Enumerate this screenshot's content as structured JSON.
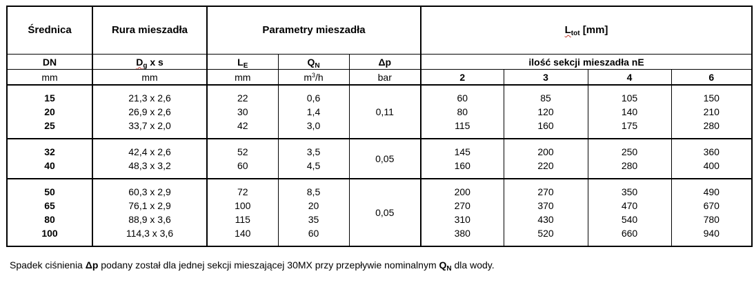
{
  "header": {
    "col_srednica": "Średnica",
    "col_rura": "Rura mieszadła",
    "col_parametry": "Parametry mieszadła",
    "col_ltot_main": "L",
    "col_ltot_sub": "tot",
    "col_ltot_unit": " [mm]",
    "dn": "DN",
    "dg_main": "D",
    "dg_sub": "g",
    "dg_rest": " x s",
    "le_main": "L",
    "le_sub": "E",
    "qn_main": "Q",
    "qn_sub": "N",
    "dp": "Δp",
    "sekcje": "ilość sekcji mieszadła nE",
    "unit_dn": "mm",
    "unit_dg": "mm",
    "unit_le": "mm",
    "unit_qn_main": "m",
    "unit_qn_sup": "3",
    "unit_qn_rest": "/h",
    "unit_dp": "bar",
    "n2": "2",
    "n3": "3",
    "n4": "4",
    "n6": "6"
  },
  "groups": [
    {
      "dp": "0,11",
      "rows": [
        {
          "dn": "15",
          "dgs": "21,3 x 2,6",
          "le": "22",
          "qn": "0,6",
          "l2": "60",
          "l3": "85",
          "l4": "105",
          "l6": "150"
        },
        {
          "dn": "20",
          "dgs": "26,9 x 2,6",
          "le": "30",
          "qn": "1,4",
          "l2": "80",
          "l3": "120",
          "l4": "140",
          "l6": "210"
        },
        {
          "dn": "25",
          "dgs": "33,7 x 2,0",
          "le": "42",
          "qn": "3,0",
          "l2": "115",
          "l3": "160",
          "l4": "175",
          "l6": "280"
        }
      ]
    },
    {
      "dp": "0,05",
      "rows": [
        {
          "dn": "32",
          "dgs": "42,4 x 2,6",
          "le": "52",
          "qn": "3,5",
          "l2": "145",
          "l3": "200",
          "l4": "250",
          "l6": "360"
        },
        {
          "dn": "40",
          "dgs": "48,3 x 3,2",
          "le": "60",
          "qn": "4,5",
          "l2": "160",
          "l3": "220",
          "l4": "280",
          "l6": "400"
        }
      ]
    },
    {
      "dp": "0,05",
      "rows": [
        {
          "dn": "50",
          "dgs": "60,3 x 2,9",
          "le": "72",
          "qn": "8,5",
          "l2": "200",
          "l3": "270",
          "l4": "350",
          "l6": "490"
        },
        {
          "dn": "65",
          "dgs": "76,1 x 2,9",
          "le": "100",
          "qn": "20",
          "l2": "270",
          "l3": "370",
          "l4": "470",
          "l6": "670"
        },
        {
          "dn": "80",
          "dgs": "88,9 x 3,6",
          "le": "115",
          "qn": "35",
          "l2": "310",
          "l3": "430",
          "l4": "540",
          "l6": "780"
        },
        {
          "dn": "100",
          "dgs": "114,3 x 3,6",
          "le": "140",
          "qn": "60",
          "l2": "380",
          "l3": "520",
          "l4": "660",
          "l6": "940"
        }
      ]
    }
  ],
  "footnote": {
    "part1": "Spadek ciśnienia ",
    "dp": "Δp",
    "part2": " podany został dla jednej sekcji mieszającej 30MX przy przepływie nominalnym ",
    "qn_main": "Q",
    "qn_sub": "N",
    "part3": " dla wody."
  }
}
